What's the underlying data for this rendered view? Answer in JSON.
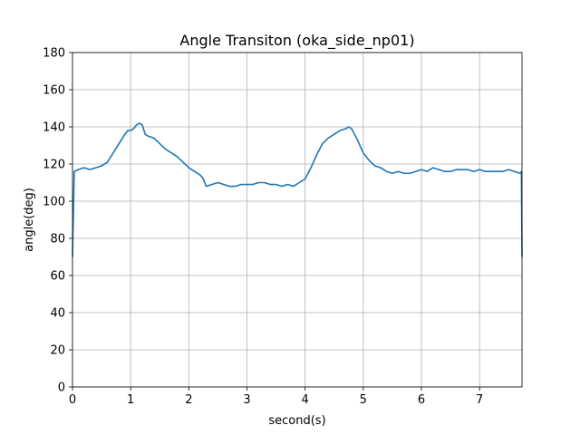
{
  "chart_data": {
    "type": "line",
    "title": "Angle Transiton (oka_side_np01)",
    "xlabel": "second(s)",
    "ylabel": "angle(deg)",
    "xlim": [
      0,
      7.73
    ],
    "ylim": [
      0,
      180
    ],
    "xticks": [
      0,
      1,
      2,
      3,
      4,
      5,
      6,
      7
    ],
    "yticks": [
      0,
      20,
      40,
      60,
      80,
      100,
      120,
      140,
      160,
      180
    ],
    "grid": true,
    "legend": "none",
    "colors": {
      "line": "#1f77b4",
      "grid": "#b0b0b0"
    },
    "series": [
      {
        "x": [
          0,
          0.03,
          0.1,
          0.2,
          0.3,
          0.4,
          0.5,
          0.6,
          0.7,
          0.8,
          0.9,
          0.95,
          1.0,
          1.05,
          1.1,
          1.15,
          1.2,
          1.25,
          1.3,
          1.4,
          1.5,
          1.6,
          1.7,
          1.8,
          1.9,
          2.0,
          2.1,
          2.2,
          2.25,
          2.3,
          2.4,
          2.5,
          2.6,
          2.7,
          2.8,
          2.9,
          3.0,
          3.1,
          3.2,
          3.3,
          3.4,
          3.5,
          3.6,
          3.7,
          3.8,
          3.9,
          4.0,
          4.1,
          4.2,
          4.3,
          4.4,
          4.5,
          4.6,
          4.7,
          4.75,
          4.8,
          4.9,
          5.0,
          5.1,
          5.2,
          5.3,
          5.4,
          5.5,
          5.6,
          5.7,
          5.8,
          5.9,
          6.0,
          6.1,
          6.2,
          6.3,
          6.4,
          6.5,
          6.6,
          6.7,
          6.8,
          6.9,
          7.0,
          7.1,
          7.2,
          7.3,
          7.4,
          7.5,
          7.6,
          7.7,
          7.72,
          7.73
        ],
        "y": [
          70,
          116,
          117,
          118,
          117,
          118,
          119,
          121,
          126,
          131,
          136,
          138,
          138,
          139,
          141,
          142,
          141,
          136,
          135,
          134,
          131,
          128,
          126,
          124,
          121,
          118,
          116,
          114,
          112,
          108,
          109,
          110,
          109,
          108,
          108,
          109,
          109,
          109,
          110,
          110,
          109,
          109,
          108,
          109,
          108,
          110,
          112,
          118,
          125,
          131,
          134,
          136,
          138,
          139,
          140,
          139,
          133,
          126,
          122,
          119,
          118,
          116,
          115,
          116,
          115,
          115,
          116,
          117,
          116,
          118,
          117,
          116,
          116,
          117,
          117,
          117,
          116,
          117,
          116,
          116,
          116,
          116,
          117,
          116,
          115,
          116,
          70
        ]
      }
    ]
  }
}
